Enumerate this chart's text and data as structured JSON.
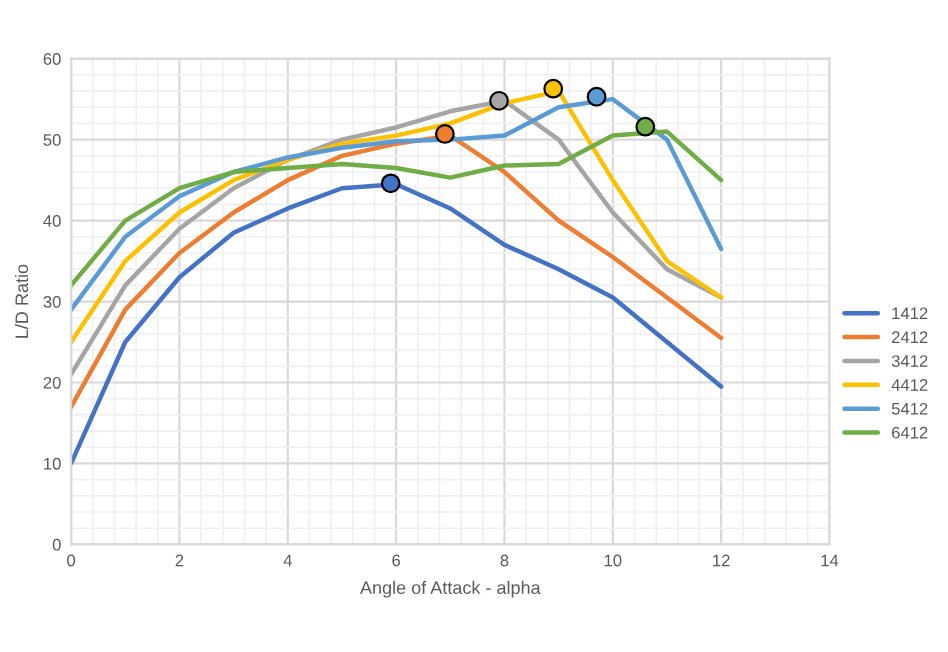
{
  "chart_data": {
    "type": "line",
    "xlabel": "Angle of Attack - alpha",
    "ylabel": "L/D Ratio",
    "x": [
      0,
      1,
      2,
      3,
      4,
      5,
      6,
      7,
      8,
      9,
      10,
      11,
      12
    ],
    "xlim": [
      0,
      14
    ],
    "xticks": [
      0,
      2,
      4,
      6,
      8,
      10,
      12,
      14
    ],
    "ylim": [
      0,
      60
    ],
    "yticks": [
      0,
      10,
      20,
      30,
      40,
      50,
      60
    ],
    "grid": true,
    "legend": "right",
    "marker": "none",
    "line_style": "solid",
    "series": [
      {
        "name": "1412",
        "color": "#4472c4",
        "values": [
          10,
          25,
          33,
          38.5,
          41.5,
          44,
          44.5,
          41.5,
          37,
          34,
          30.5,
          25,
          19.5
        ]
      },
      {
        "name": "2412",
        "color": "#ed7d31",
        "values": [
          17,
          29,
          36,
          41,
          45,
          48,
          49.5,
          50.5,
          46,
          40,
          35.5,
          30.5,
          25.5
        ]
      },
      {
        "name": "3412",
        "color": "#a5a5a5",
        "values": [
          21,
          32,
          39,
          44,
          47.5,
          50,
          51.5,
          53.5,
          54.8,
          50,
          41,
          34,
          30.5
        ]
      },
      {
        "name": "4412",
        "color": "#ffc000",
        "values": [
          25,
          35,
          41,
          45,
          47.5,
          49.5,
          50.5,
          52,
          54.5,
          56,
          45,
          35,
          30.5
        ]
      },
      {
        "name": "5412",
        "color": "#5b9bd5",
        "values": [
          29,
          38,
          43,
          46,
          47.8,
          49,
          49.8,
          50,
          50.5,
          54,
          55,
          50,
          36.5
        ]
      },
      {
        "name": "6412",
        "color": "#70ad47",
        "values": [
          32,
          40,
          44,
          46,
          46.5,
          47,
          46.5,
          45.3,
          46.8,
          47,
          50.5,
          51,
          45
        ]
      },
      {
        "type": "scatter",
        "marker": "circle",
        "x": [
          5.9,
          6.9,
          7.9,
          8.9,
          9.7,
          10.6
        ],
        "values": [
          44.6,
          50.7,
          54.8,
          56.3,
          55.3,
          51.6
        ],
        "colors": [
          "#4472c4",
          "#ed7d31",
          "#a5a5a5",
          "#ffc000",
          "#5b9bd5",
          "#70ad47"
        ]
      }
    ]
  }
}
